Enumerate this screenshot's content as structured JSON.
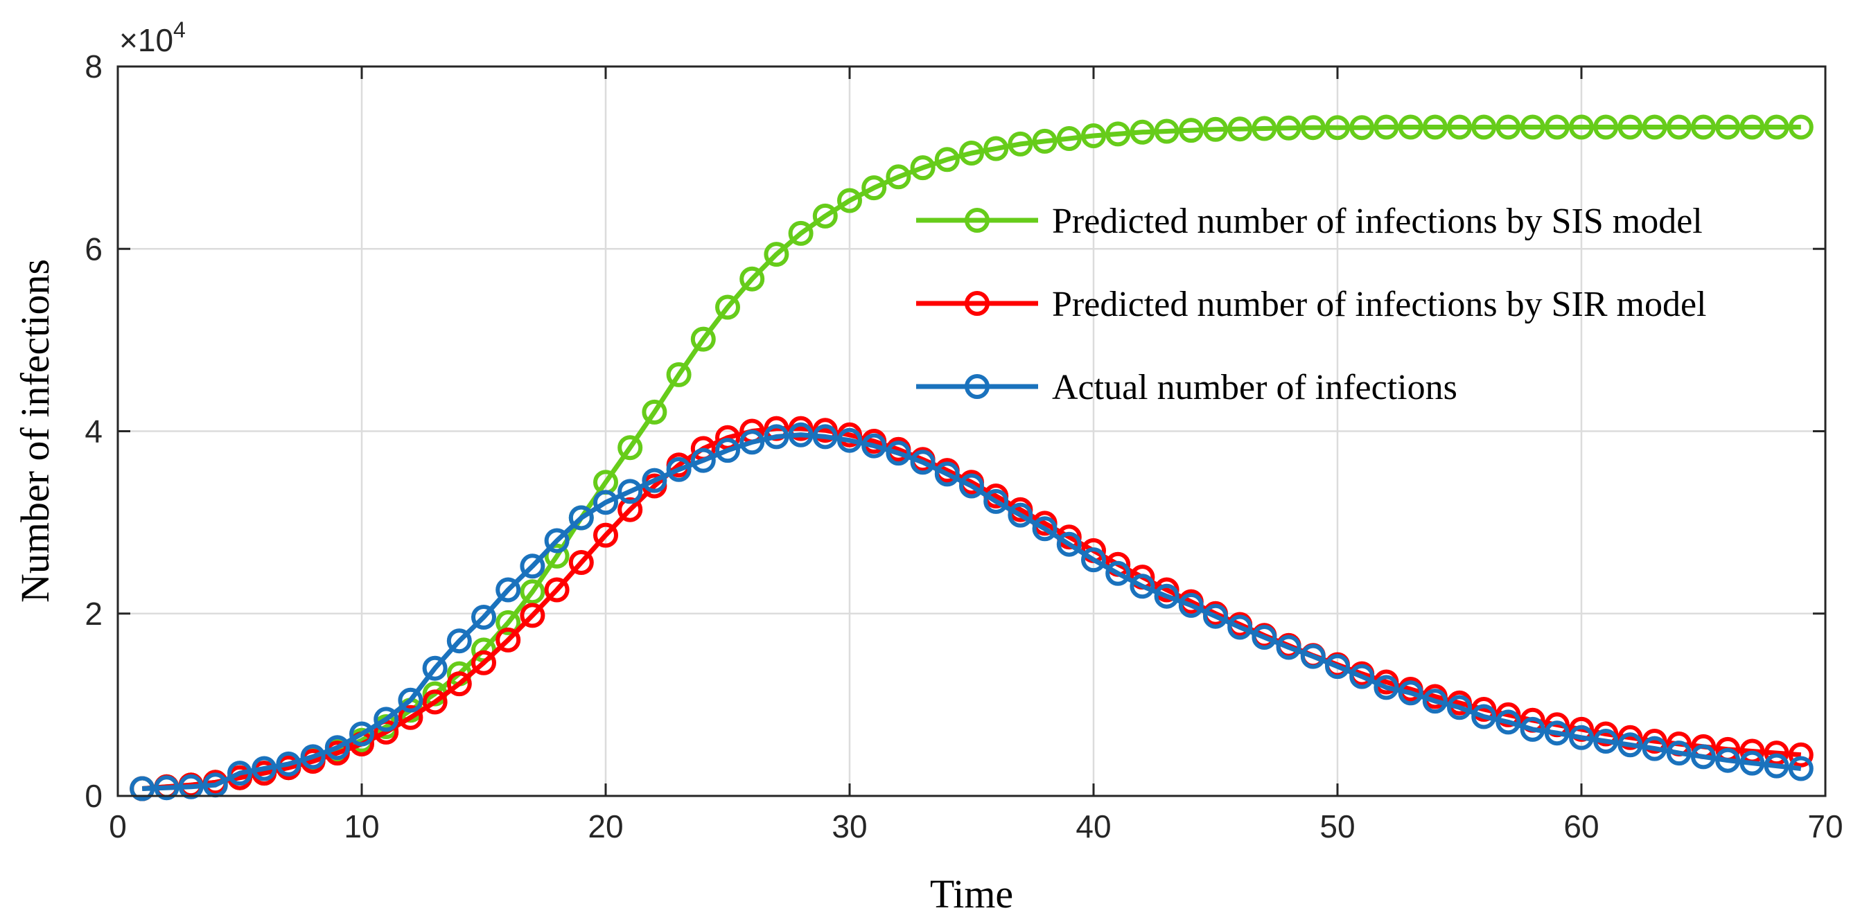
{
  "chart_data": {
    "type": "line",
    "xlabel": "Time",
    "ylabel": "Number of infections",
    "xlim": [
      0,
      70
    ],
    "ylim": [
      0,
      80000
    ],
    "xticks": [
      0,
      10,
      20,
      30,
      40,
      50,
      60,
      70
    ],
    "yticks": [
      0,
      20000,
      40000,
      60000,
      80000
    ],
    "ytick_labels": [
      "0",
      "2",
      "4",
      "6",
      "8"
    ],
    "xtick_labels": [
      "0",
      "10",
      "20",
      "30",
      "40",
      "50",
      "60",
      "70"
    ],
    "y_multiplier_base": "×10",
    "y_multiplier_exp": "4",
    "grid": true,
    "legend_position": "right",
    "x": [
      1,
      2,
      3,
      4,
      5,
      6,
      7,
      8,
      9,
      10,
      11,
      12,
      13,
      14,
      15,
      16,
      17,
      18,
      19,
      20,
      21,
      22,
      23,
      24,
      25,
      26,
      27,
      28,
      29,
      30,
      31,
      32,
      33,
      34,
      35,
      36,
      37,
      38,
      39,
      40,
      41,
      42,
      43,
      44,
      45,
      46,
      47,
      48,
      49,
      50,
      51,
      52,
      53,
      54,
      55,
      56,
      57,
      58,
      59,
      60,
      61,
      62,
      63,
      64,
      65,
      66,
      67,
      68,
      69
    ],
    "series": [
      {
        "name": "Predicted number of infections by SIS model",
        "color": "#66cc1a",
        "values": [
          800,
          1000,
          1200,
          1500,
          2000,
          2500,
          3100,
          3900,
          4900,
          6100,
          7600,
          9400,
          11200,
          13400,
          16000,
          19000,
          22400,
          26300,
          30500,
          34400,
          38200,
          42100,
          46200,
          50100,
          53600,
          56700,
          59400,
          61700,
          63600,
          65300,
          66700,
          67900,
          68900,
          69800,
          70500,
          71000,
          71500,
          71800,
          72100,
          72400,
          72600,
          72800,
          72900,
          73000,
          73100,
          73150,
          73200,
          73250,
          73300,
          73300,
          73300,
          73350,
          73350,
          73350,
          73350,
          73350,
          73350,
          73350,
          73350,
          73350,
          73350,
          73350,
          73350,
          73350,
          73350,
          73350,
          73350,
          73350,
          73350
        ]
      },
      {
        "name": "Predicted number of infections by SIR model",
        "color": "#ff0000",
        "values": [
          800,
          1000,
          1200,
          1500,
          2000,
          2500,
          3100,
          3800,
          4700,
          5700,
          7000,
          8600,
          10300,
          12300,
          14600,
          17100,
          19800,
          22600,
          25600,
          28600,
          31400,
          34000,
          36300,
          38100,
          39300,
          40000,
          40300,
          40300,
          40100,
          39600,
          38900,
          38000,
          36900,
          35700,
          34400,
          32900,
          31400,
          29900,
          28400,
          26900,
          25400,
          24000,
          22600,
          21300,
          20000,
          18800,
          17600,
          16500,
          15400,
          14400,
          13400,
          12500,
          11700,
          10900,
          10200,
          9500,
          8900,
          8300,
          7800,
          7300,
          6800,
          6400,
          6000,
          5700,
          5400,
          5100,
          4900,
          4700,
          4500
        ]
      },
      {
        "name": "Actual number of infections",
        "color": "#1a72bd",
        "values": [
          800,
          900,
          1000,
          1200,
          2500,
          3000,
          3500,
          4300,
          5300,
          6800,
          8400,
          10500,
          14000,
          17000,
          19600,
          22600,
          25200,
          28000,
          30500,
          32200,
          33400,
          34600,
          35800,
          36800,
          37900,
          38800,
          39400,
          39600,
          39400,
          39000,
          38400,
          37600,
          36600,
          35300,
          34000,
          32300,
          30800,
          29300,
          27600,
          25900,
          24400,
          23000,
          21900,
          20900,
          19700,
          18500,
          17400,
          16300,
          15300,
          14200,
          13100,
          11900,
          11300,
          10400,
          9700,
          8700,
          8100,
          7300,
          6900,
          6400,
          6000,
          5600,
          5200,
          4700,
          4300,
          3900,
          3600,
          3300,
          3000
        ]
      }
    ]
  }
}
